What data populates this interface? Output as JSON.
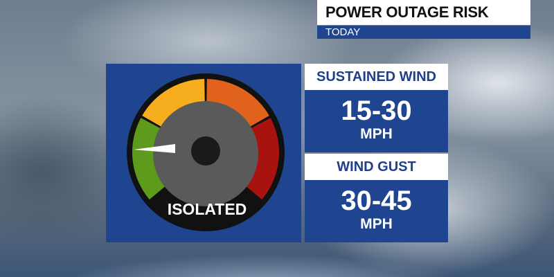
{
  "header": {
    "title": "POWER OUTAGE RISK",
    "subtitle": "TODAY"
  },
  "gauge": {
    "level_label": "ISOLATED",
    "segments": [
      {
        "name": "green",
        "color": "#5e9a1c"
      },
      {
        "name": "yellow",
        "color": "#f6ae1e"
      },
      {
        "name": "orange",
        "color": "#e0621c"
      },
      {
        "name": "red",
        "color": "#a8120f"
      }
    ],
    "needle_position_fraction": 0.05
  },
  "sustained_wind": {
    "label": "SUSTAINED WIND",
    "value": "15-30",
    "unit": "MPH"
  },
  "wind_gust": {
    "label": "WIND GUST",
    "value": "30-45",
    "unit": "MPH"
  },
  "colors": {
    "panel_blue": "#1f4590",
    "heading_text": "#1f3f8a"
  }
}
